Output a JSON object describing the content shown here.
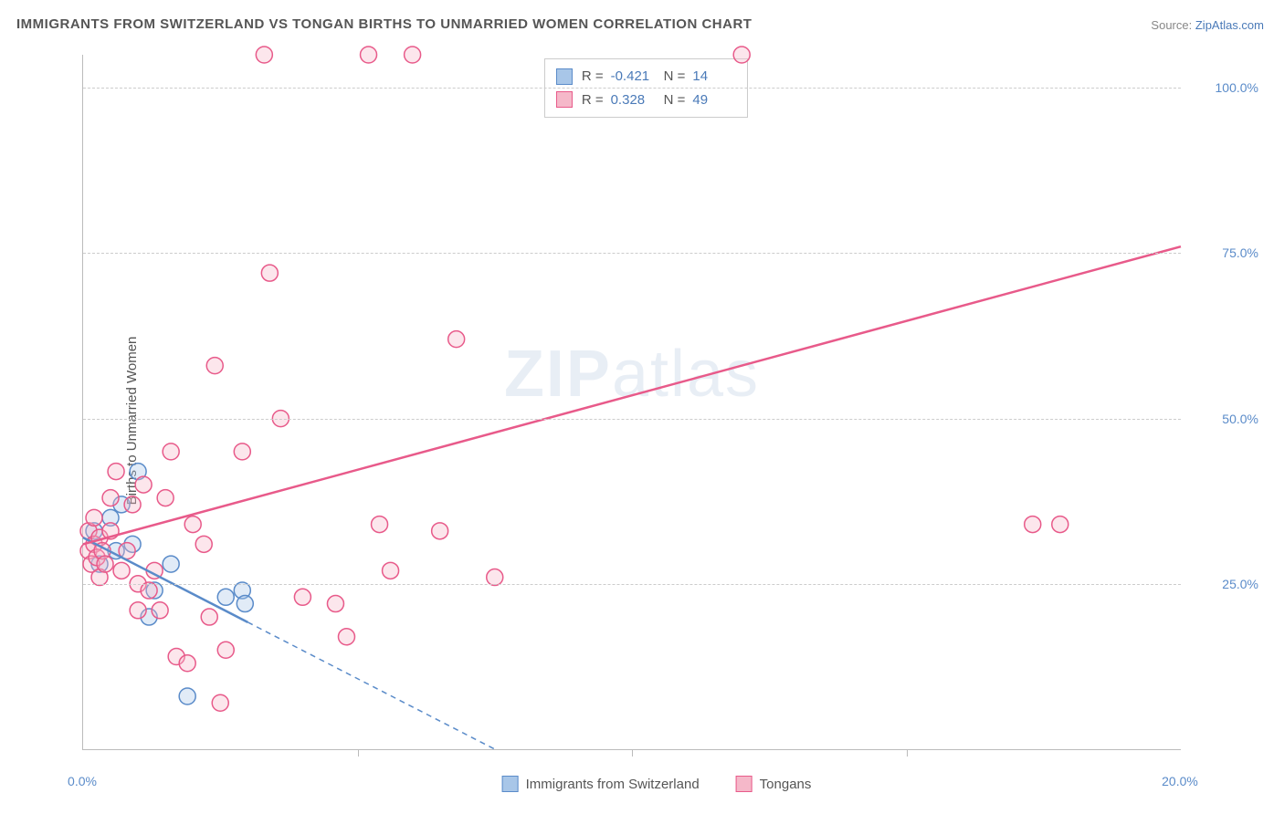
{
  "title": "IMMIGRANTS FROM SWITZERLAND VS TONGAN BIRTHS TO UNMARRIED WOMEN CORRELATION CHART",
  "source_label": "Source:",
  "source_value": "ZipAtlas.com",
  "watermark": {
    "bold": "ZIP",
    "light": "atlas"
  },
  "y_axis_title": "Births to Unmarried Women",
  "chart": {
    "type": "scatter_with_regression",
    "xlim": [
      0,
      20
    ],
    "ylim": [
      0,
      105
    ],
    "x_ticks": [
      0,
      20
    ],
    "x_tick_labels": [
      "0.0%",
      "20.0%"
    ],
    "x_minor_ticks": [
      5,
      10,
      15
    ],
    "y_ticks": [
      25,
      50,
      75,
      100
    ],
    "y_tick_labels": [
      "25.0%",
      "50.0%",
      "75.0%",
      "100.0%"
    ],
    "grid_color": "#cccccc",
    "axis_color": "#bbbbbb",
    "background_color": "#ffffff",
    "marker_radius": 9,
    "marker_fill_opacity": 0.35,
    "marker_stroke_width": 1.5,
    "series": [
      {
        "name": "Immigrants from Switzerland",
        "color_fill": "#a8c6e8",
        "color_stroke": "#5a8bc9",
        "R": "-0.421",
        "N": "14",
        "regression": {
          "x1": 0,
          "y1": 32,
          "x2": 7.5,
          "y2": 0,
          "solid_until_x": 3.0,
          "stroke_width": 2.5
        },
        "points": [
          [
            0.2,
            33
          ],
          [
            0.3,
            28
          ],
          [
            0.5,
            35
          ],
          [
            0.6,
            30
          ],
          [
            0.7,
            37
          ],
          [
            0.9,
            31
          ],
          [
            1.0,
            42
          ],
          [
            1.2,
            20
          ],
          [
            1.3,
            24
          ],
          [
            1.6,
            28
          ],
          [
            1.9,
            8
          ],
          [
            2.6,
            23
          ],
          [
            2.9,
            24
          ],
          [
            2.95,
            22
          ]
        ]
      },
      {
        "name": "Tongans",
        "color_fill": "#f5b8c9",
        "color_stroke": "#e85a8a",
        "R": "0.328",
        "N": "49",
        "regression": {
          "x1": 0,
          "y1": 31,
          "x2": 20,
          "y2": 76,
          "solid_until_x": 20,
          "stroke_width": 2.5
        },
        "points": [
          [
            0.1,
            30
          ],
          [
            0.1,
            33
          ],
          [
            0.15,
            28
          ],
          [
            0.2,
            35
          ],
          [
            0.2,
            31
          ],
          [
            0.25,
            29
          ],
          [
            0.3,
            26
          ],
          [
            0.3,
            32
          ],
          [
            0.35,
            30
          ],
          [
            0.4,
            28
          ],
          [
            0.5,
            38
          ],
          [
            0.5,
            33
          ],
          [
            0.6,
            42
          ],
          [
            0.7,
            27
          ],
          [
            0.8,
            30
          ],
          [
            0.9,
            37
          ],
          [
            1.0,
            25
          ],
          [
            1.0,
            21
          ],
          [
            1.1,
            40
          ],
          [
            1.2,
            24
          ],
          [
            1.3,
            27
          ],
          [
            1.4,
            21
          ],
          [
            1.5,
            38
          ],
          [
            1.6,
            45
          ],
          [
            1.7,
            14
          ],
          [
            1.9,
            13
          ],
          [
            2.0,
            34
          ],
          [
            2.2,
            31
          ],
          [
            2.3,
            20
          ],
          [
            2.4,
            58
          ],
          [
            2.5,
            7
          ],
          [
            2.6,
            15
          ],
          [
            2.9,
            45
          ],
          [
            3.3,
            105
          ],
          [
            3.4,
            72
          ],
          [
            3.6,
            50
          ],
          [
            4.0,
            23
          ],
          [
            4.6,
            22
          ],
          [
            4.8,
            17
          ],
          [
            5.2,
            105
          ],
          [
            5.4,
            34
          ],
          [
            5.6,
            27
          ],
          [
            6.0,
            105
          ],
          [
            6.5,
            33
          ],
          [
            6.8,
            62
          ],
          [
            7.5,
            26
          ],
          [
            12.0,
            105
          ],
          [
            17.3,
            34
          ],
          [
            17.8,
            34
          ]
        ]
      }
    ]
  },
  "legend_stats": {
    "r_label": "R =",
    "n_label": "N ="
  },
  "bottom_legend": {
    "series1": "Immigrants from Switzerland",
    "series2": "Tongans"
  }
}
